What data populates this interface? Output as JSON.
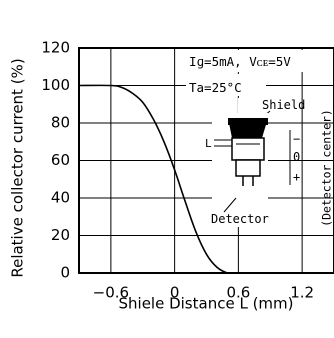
{
  "chart_data": {
    "type": "line",
    "ylabel": "Relative collector current (%)",
    "xlabel": "Shiele Distance L (mm)",
    "xlim": [
      -0.9,
      1.5
    ],
    "ylim": [
      0,
      120
    ],
    "x_ticks": [
      -0.6,
      0,
      0.6,
      1.2
    ],
    "y_ticks": [
      0,
      20,
      40,
      60,
      80,
      100,
      120
    ],
    "x_tick_labels": [
      "−0.6",
      "0",
      "0.6",
      "1.2"
    ],
    "y_tick_labels": [
      "0",
      "20",
      "40",
      "60",
      "80",
      "100",
      "120"
    ],
    "grid": true,
    "series": [
      {
        "x": [
          -0.9,
          -0.6,
          -0.5,
          -0.4,
          -0.3,
          -0.2,
          -0.1,
          0,
          0.1,
          0.2,
          0.3,
          0.4,
          0.5,
          0.6,
          1.5
        ],
        "y": [
          100,
          100,
          99,
          96,
          91,
          82,
          70,
          55,
          38,
          22,
          10,
          3,
          0,
          0,
          0
        ]
      }
    ],
    "annotations": {
      "conditions": "Iɡ=5mA, Vᴄᴇ=5V",
      "temperature": "Ta=25°C",
      "shield_label": "Shield",
      "detector_label": "Detector",
      "detector_center_label": "(Detector center)",
      "l_marker": "L",
      "minus_sign": "−",
      "zero_sign": "0",
      "plus_sign": "+"
    }
  }
}
